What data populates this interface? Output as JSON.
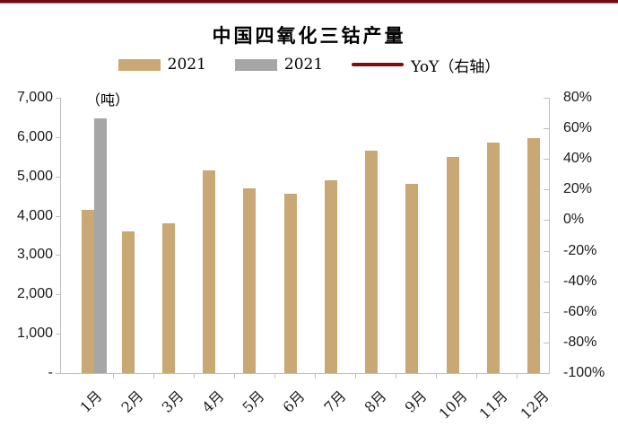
{
  "page": {
    "title": "中国四氧化三钴产量",
    "unit_label": "（吨）"
  },
  "legend": [
    {
      "label": "2021",
      "swatch": "bar",
      "color": "#C9A876"
    },
    {
      "label": "2021",
      "swatch": "bar",
      "color": "#A6A6A6"
    },
    {
      "label": "YoY（右轴）",
      "swatch": "line",
      "color": "#7E0D0D"
    }
  ],
  "chart_data": {
    "type": "bar",
    "title": "中国四氧化三钴产量",
    "unit": "（吨）",
    "legend_position": "top",
    "grid": false,
    "categories": [
      "1月",
      "2月",
      "3月",
      "4月",
      "5月",
      "6月",
      "7月",
      "8月",
      "9月",
      "10月",
      "11月",
      "12月"
    ],
    "series": [
      {
        "name": "2021",
        "type": "bar",
        "axis": "left",
        "color": "#C9A876",
        "values": [
          4150,
          3600,
          3800,
          5150,
          4700,
          4550,
          4910,
          5660,
          4800,
          5490,
          5860,
          5970
        ]
      },
      {
        "name": "2021",
        "type": "bar",
        "axis": "left",
        "color": "#A6A6A6",
        "values": [
          6470,
          null,
          null,
          null,
          null,
          null,
          null,
          null,
          null,
          null,
          null,
          null
        ]
      },
      {
        "name": "YoY（右轴）",
        "type": "line",
        "axis": "right",
        "color": "#7E0D0D",
        "values": []
      }
    ],
    "left_axis": {
      "ticks": [
        "7,000",
        "6,000",
        "5,000",
        "4,000",
        "3,000",
        "2,000",
        "1,000",
        "-"
      ],
      "range": [
        0,
        7000
      ]
    },
    "right_axis": {
      "ticks": [
        "80%",
        "60%",
        "40%",
        "20%",
        "0%",
        "-20%",
        "-40%",
        "-60%",
        "-80%",
        "-100%"
      ],
      "range": [
        -100,
        80
      ]
    }
  }
}
